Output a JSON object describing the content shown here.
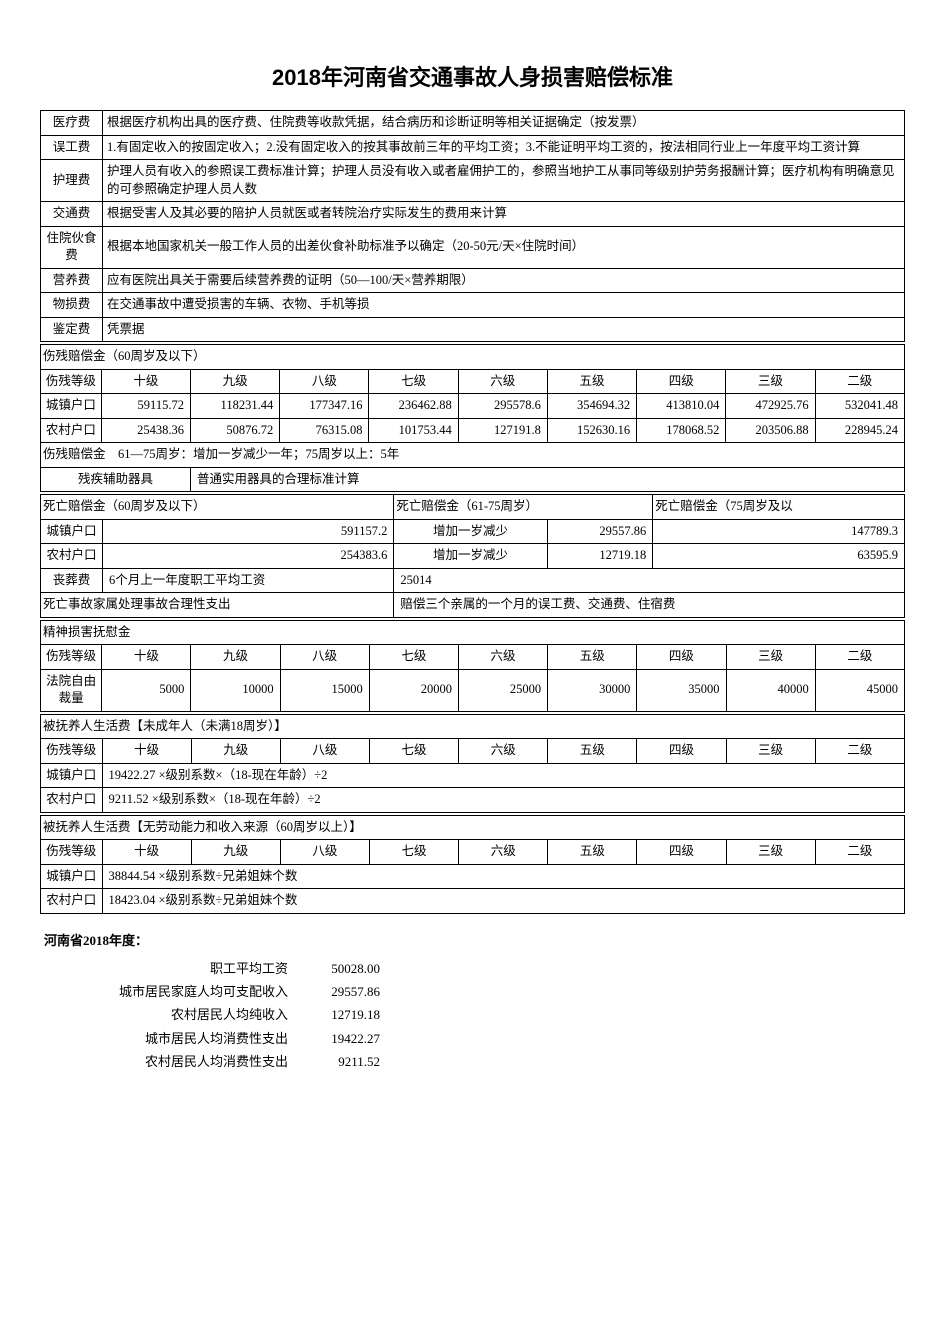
{
  "title": "2018年河南省交通事故人身损害赔偿标准",
  "colors": {
    "background": "#ffffff",
    "text": "#000000",
    "border": "#000000"
  },
  "typography": {
    "title_fontsize": 22,
    "body_fontsize": 12.5,
    "title_font": "SimHei",
    "body_font": "SimSun"
  },
  "fees": [
    {
      "label": "医疗费",
      "desc": "根据医疗机构出具的医疗费、住院费等收款凭据，结合病历和诊断证明等相关证据确定（按发票）"
    },
    {
      "label": "误工费",
      "desc": "1.有固定收入的按固定收入；2.没有固定收入的按其事故前三年的平均工资；3.不能证明平均工资的，按法相同行业上一年度平均工资计算"
    },
    {
      "label": "护理费",
      "desc": "护理人员有收入的参照误工费标准计算；护理人员没有收入或者雇佣护工的，参照当地护工从事同等级别护劳务报酬计算；医疗机构有明确意见的可参照确定护理人员人数"
    },
    {
      "label": "交通费",
      "desc": "根据受害人及其必要的陪护人员就医或者转院治疗实际发生的费用来计算"
    },
    {
      "label": "住院伙食费",
      "desc": "根据本地国家机关一般工作人员的出差伙食补助标准予以确定（20-50元/天×住院时间）"
    },
    {
      "label": "营养费",
      "desc": "应有医院出具关于需要后续营养费的证明（50—100/天×营养期限）"
    },
    {
      "label": "物损费",
      "desc": "在交通事故中遭受损害的车辆、衣物、手机等损"
    },
    {
      "label": "鉴定费",
      "desc": "凭票据"
    }
  ],
  "disability_comp": {
    "header": "伤残赔偿金（60周岁及以下）",
    "col_label": "伤残等级",
    "grades": [
      "十级",
      "九级",
      "八级",
      "七级",
      "六级",
      "五级",
      "四级",
      "三级",
      "二级"
    ],
    "rows": [
      {
        "label": "城镇户口",
        "values": [
          "59115.72",
          "118231.44",
          "177347.16",
          "236462.88",
          "295578.6",
          "354694.32",
          "413810.04",
          "472925.76",
          "532041.48"
        ]
      },
      {
        "label": "农村户口",
        "values": [
          "25438.36",
          "50876.72",
          "76315.08",
          "101753.44",
          "127191.8",
          "152630.16",
          "178068.52",
          "203506.88",
          "228945.24"
        ]
      }
    ],
    "note": "伤残赔偿金　61—75周岁：增加一岁减少一年；75周岁以上：5年",
    "aux_label": "残疾辅助器具",
    "aux_desc": "普通实用器具的合理标准计算"
  },
  "death_comp": {
    "h1": "死亡赔偿金（60周岁及以下）",
    "h2": "死亡赔偿金（61-75周岁）",
    "h3": "死亡赔偿金（75周岁及以",
    "rows": [
      {
        "label": "城镇户口",
        "v1": "591157.2",
        "m": "增加一岁减少",
        "v2": "29557.86",
        "v3": "147789.3"
      },
      {
        "label": "农村户口",
        "v1": "254383.6",
        "m": "增加一岁减少",
        "v2": "12719.18",
        "v3": "63595.9"
      }
    ],
    "funeral_label": "丧葬费",
    "funeral_desc": "6个月上一年度职工平均工资",
    "funeral_value": "25014",
    "family_label": "死亡事故家属处理事故合理性支出",
    "family_desc": "赔偿三个亲属的一个月的误工费、交通费、住宿费"
  },
  "mental": {
    "header": "精神损害抚慰金",
    "col_label": "伤残等级",
    "grades": [
      "十级",
      "九级",
      "八级",
      "七级",
      "六级",
      "五级",
      "四级",
      "三级",
      "二级"
    ],
    "row_label": "法院自由裁量",
    "values": [
      "5000",
      "10000",
      "15000",
      "20000",
      "25000",
      "30000",
      "35000",
      "40000",
      "45000"
    ]
  },
  "dependents_minor": {
    "header": "被抚养人生活费【未成年人（未满18周岁）】",
    "col_label": "伤残等级",
    "grades": [
      "十级",
      "九级",
      "八级",
      "七级",
      "六级",
      "五级",
      "四级",
      "三级",
      "二级"
    ],
    "rows": [
      {
        "label": "城镇户口",
        "formula": "19422.27 ×级别系数×（18-现在年龄）÷2"
      },
      {
        "label": "农村户口",
        "formula": "9211.52 ×级别系数×（18-现在年龄）÷2"
      }
    ]
  },
  "dependents_elder": {
    "header": "被抚养人生活费【无劳动能力和收入来源（60周岁以上）】",
    "col_label": "伤残等级",
    "grades": [
      "十级",
      "九级",
      "八级",
      "七级",
      "六级",
      "五级",
      "四级",
      "三级",
      "二级"
    ],
    "rows": [
      {
        "label": "城镇户口",
        "formula": "38844.54 ×级别系数÷兄弟姐妹个数"
      },
      {
        "label": "农村户口",
        "formula": "18423.04 ×级别系数÷兄弟姐妹个数"
      }
    ]
  },
  "stats": {
    "title": "河南省2018年度：",
    "rows": [
      {
        "label": "职工平均工资",
        "value": "50028.00"
      },
      {
        "label": "城市居民家庭人均可支配收入",
        "value": "29557.86"
      },
      {
        "label": "农村居民人均纯收入",
        "value": "12719.18"
      },
      {
        "label": "城市居民人均消费性支出",
        "value": "19422.27"
      },
      {
        "label": "农村居民人均消费性支出",
        "value": "9211.52"
      }
    ]
  }
}
